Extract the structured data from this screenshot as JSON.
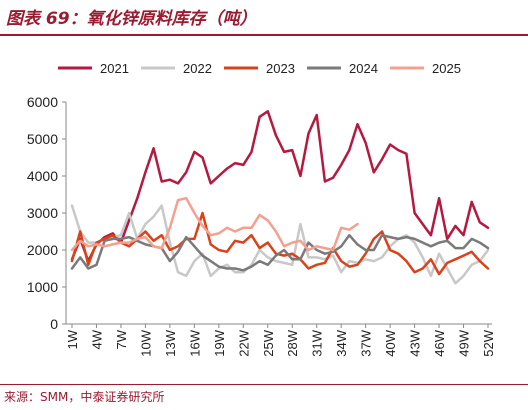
{
  "header": {
    "title": "图表 69：氧化锌原料库存（吨）"
  },
  "footer": {
    "source": "来源：SMM，中泰证券研究所"
  },
  "chart_data": {
    "type": "line",
    "title": "图表 69：氧化锌原料库存（吨）",
    "xlabel": "",
    "ylabel": "",
    "ylim": [
      0,
      6000
    ],
    "yticks": [
      0,
      1000,
      2000,
      3000,
      4000,
      5000,
      6000
    ],
    "x_tick_labels": [
      "1W",
      "4W",
      "7W",
      "10W",
      "13W",
      "16W",
      "19W",
      "22W",
      "25W",
      "28W",
      "31W",
      "34W",
      "37W",
      "40W",
      "43W",
      "46W",
      "49W",
      "52W"
    ],
    "x_tick_weeks": [
      1,
      4,
      7,
      10,
      13,
      16,
      19,
      22,
      25,
      28,
      31,
      34,
      37,
      40,
      43,
      46,
      49,
      52
    ],
    "x": [
      1,
      2,
      3,
      4,
      5,
      6,
      7,
      8,
      9,
      10,
      11,
      12,
      13,
      14,
      15,
      16,
      17,
      18,
      19,
      20,
      21,
      22,
      23,
      24,
      25,
      26,
      27,
      28,
      29,
      30,
      31,
      32,
      33,
      34,
      35,
      36,
      37,
      38,
      39,
      40,
      41,
      42,
      43,
      44,
      45,
      46,
      47,
      48,
      49,
      50,
      51,
      52
    ],
    "grid": false,
    "legend_position": "top",
    "series": [
      {
        "name": "2021",
        "color": "#b5193f",
        "width": 2.5,
        "values": [
          1750,
          2300,
          1700,
          2150,
          2350,
          2450,
          2200,
          2800,
          3400,
          4100,
          4750,
          3850,
          3900,
          3800,
          4100,
          4650,
          4500,
          3800,
          4000,
          4200,
          4350,
          4300,
          4650,
          5600,
          5750,
          5100,
          4650,
          4700,
          4000,
          5150,
          5650,
          3850,
          3950,
          4300,
          4700,
          5400,
          4900,
          4100,
          4450,
          4850,
          4700,
          4600,
          3000,
          2700,
          2400,
          3400,
          2300,
          2650,
          2400,
          3300,
          2750,
          2600
        ]
      },
      {
        "name": "2022",
        "color": "#c8c8c8",
        "width": 2.5,
        "values": [
          3200,
          2500,
          2200,
          2200,
          2300,
          2350,
          2400,
          3000,
          2300,
          2700,
          2900,
          3200,
          2200,
          1400,
          1300,
          1700,
          1900,
          1300,
          1500,
          1600,
          1400,
          1400,
          1600,
          2000,
          1800,
          1700,
          1650,
          1600,
          2700,
          1800,
          1800,
          1750,
          1850,
          1400,
          1700,
          1650,
          1750,
          1700,
          1800,
          2100,
          2300,
          2400,
          2200,
          1800,
          1300,
          1900,
          1500,
          1100,
          1300,
          1600,
          1700,
          2000
        ]
      },
      {
        "name": "2023",
        "color": "#d8431c",
        "width": 2.5,
        "values": [
          1700,
          2500,
          1600,
          2200,
          2300,
          2400,
          2200,
          2100,
          2300,
          2500,
          2250,
          2400,
          2000,
          2100,
          2300,
          2300,
          3000,
          2150,
          2000,
          1950,
          2250,
          2200,
          2400,
          2050,
          2200,
          1900,
          1850,
          1900,
          1750,
          1500,
          1600,
          1650,
          2050,
          1700,
          1550,
          1600,
          1900,
          2300,
          2500,
          2000,
          1900,
          1700,
          1400,
          1500,
          1750,
          1350,
          1650,
          1750,
          1850,
          1950,
          1700,
          1500
        ]
      },
      {
        "name": "2024",
        "color": "#7a7a7a",
        "width": 2.5,
        "values": [
          1500,
          1800,
          1500,
          1600,
          2250,
          2300,
          2300,
          2350,
          2250,
          2150,
          2100,
          2050,
          1700,
          1950,
          2350,
          2100,
          1850,
          1700,
          1550,
          1500,
          1500,
          1450,
          1550,
          1700,
          1600,
          1850,
          2000,
          1750,
          1750,
          2200,
          2000,
          1900,
          1950,
          2100,
          2400,
          2150,
          2000,
          2000,
          2400,
          2350,
          2300,
          2350,
          2300,
          2200,
          2100,
          2200,
          2250,
          2050,
          2050,
          2300,
          2200,
          2050
        ]
      },
      {
        "name": "2025",
        "color": "#f4a090",
        "width": 2.5,
        "values": [
          2000,
          2250,
          2100,
          2150,
          2100,
          2150,
          2200,
          2200,
          2300,
          2350,
          2100,
          2050,
          2600,
          3350,
          3400,
          3000,
          2650,
          2400,
          2450,
          2600,
          2500,
          2600,
          2600,
          2950,
          2800,
          2500,
          2100,
          2200,
          2250,
          2000,
          2100,
          2050,
          2000,
          2600,
          2550,
          2700,
          null,
          null,
          null,
          null,
          null,
          null,
          null,
          null,
          null,
          null,
          null,
          null,
          null,
          null,
          null,
          null
        ]
      }
    ]
  }
}
